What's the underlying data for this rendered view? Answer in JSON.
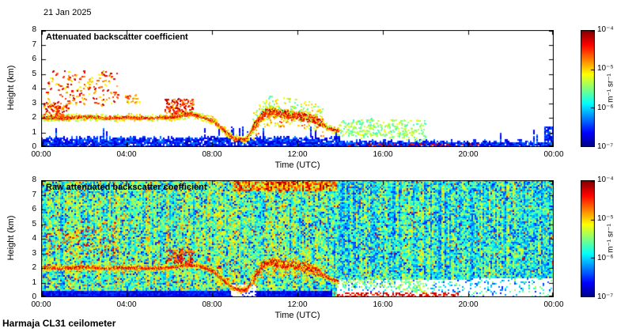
{
  "page": {
    "date_label": "21 Jan 2025",
    "footer": "Harmaja CL31 ceilometer",
    "background": "#ffffff"
  },
  "chart_data": [
    {
      "type": "heatmap",
      "style": "processed",
      "seed": 42,
      "title": "Attenuated backscatter coefficient",
      "xlabel": "Time (UTC)",
      "ylabel": "Height (km)",
      "x_ticks": [
        "00:00",
        "04:00",
        "08:00",
        "12:00",
        "16:00",
        "20:00",
        "00:00"
      ],
      "x_range_hours": [
        0,
        24
      ],
      "y_ticks": [
        0,
        1,
        2,
        3,
        4,
        5,
        6,
        7,
        8
      ],
      "ylim_km": [
        0,
        8
      ],
      "grid": false,
      "colorbar": {
        "ticks": [
          "10⁻⁴",
          "10⁻⁵",
          "10⁻⁶",
          "10⁻⁷"
        ],
        "unit": "m⁻¹ sr⁻¹",
        "scale": "log",
        "range": [
          "1e-7",
          "1e-4"
        ],
        "colormap": "jet",
        "position": "right"
      },
      "features": {
        "boundary_layer_top_km": 0.7,
        "boundary_layer_top_km_after_14utc": 0.45,
        "far_right_blue_block_top_km": 1.45,
        "ground_red_specks_t": [
          14.2,
          20.5
        ],
        "aerosol_track_t_h": [
          [
            0,
            2.05
          ],
          [
            1,
            2.0
          ],
          [
            2,
            2.1
          ],
          [
            3,
            2.0
          ],
          [
            4,
            2.05
          ],
          [
            5,
            2.0
          ],
          [
            6,
            2.05
          ],
          [
            7,
            2.25
          ],
          [
            7.5,
            2.1
          ],
          [
            8,
            1.85
          ],
          [
            8.5,
            1.25
          ],
          [
            9,
            0.6
          ],
          [
            9.6,
            0.5
          ],
          [
            10,
            1.5
          ],
          [
            10.4,
            2.3
          ],
          [
            10.8,
            2.45
          ],
          [
            11.2,
            2.3
          ],
          [
            11.8,
            2.2
          ],
          [
            12.4,
            2.1
          ],
          [
            13,
            1.75
          ],
          [
            13.5,
            1.3
          ],
          [
            14,
            1.05
          ],
          [
            15,
            0.95
          ],
          [
            16,
            1.1
          ],
          [
            17,
            0.85
          ],
          [
            18,
            0.6
          ]
        ],
        "cloud_speck_regions": [
          {
            "t": [
              0.2,
              3.6
            ],
            "h": [
              2.9,
              5.2
            ],
            "n": 150,
            "v": [
              0.6,
              0.95
            ]
          },
          {
            "t": [
              0.1,
              1.3
            ],
            "h": [
              2.1,
              3.0
            ],
            "n": 70,
            "v": [
              0.65,
              0.95
            ]
          },
          {
            "t": [
              5.8,
              7.1
            ],
            "h": [
              2.3,
              3.3
            ],
            "n": 110,
            "v": [
              0.7,
              0.97
            ]
          },
          {
            "t": [
              3.9,
              4.6
            ],
            "h": [
              3.0,
              3.6
            ],
            "n": 25,
            "v": [
              0.6,
              0.85
            ]
          },
          {
            "t": [
              14.0,
              18.0
            ],
            "h": [
              0.8,
              1.9
            ],
            "n": 150,
            "v": [
              0.42,
              0.62
            ]
          }
        ]
      }
    },
    {
      "type": "heatmap",
      "style": "raw",
      "seed": 7,
      "title": "Raw attenuated backscatter coefficient",
      "xlabel": "Time (UTC)",
      "ylabel": "Height (km)",
      "x_ticks": [
        "00:00",
        "04:00",
        "08:00",
        "12:00",
        "16:00",
        "20:00",
        "00:00"
      ],
      "x_range_hours": [
        0,
        24
      ],
      "y_ticks": [
        0,
        1,
        2,
        3,
        4,
        5,
        6,
        7,
        8
      ],
      "ylim_km": [
        0,
        8
      ],
      "grid": false,
      "colorbar": {
        "ticks": [
          "10⁻⁴",
          "10⁻⁵",
          "10⁻⁶",
          "10⁻⁷"
        ],
        "unit": "m⁻¹ sr⁻¹",
        "scale": "log",
        "range": [
          "1e-7",
          "1e-4"
        ],
        "colormap": "jet",
        "position": "right"
      },
      "features": {
        "noise": {
          "base": 0.42,
          "left_boost": 0.07,
          "left_until_t": 13.6,
          "speckle_blue_prob": 0.16,
          "hot_pixel_prob": 0.02
        },
        "top_orange_band": {
          "h_above": 7.2,
          "t": [
            9.0,
            13.8
          ]
        },
        "white_low_region": {
          "t_after": 13.8,
          "h_below": 1.15
        },
        "white_notch": {
          "t": [
            8.85,
            10.05
          ],
          "h_below": 0.85
        },
        "dark_blue_boundary": {
          "t_before": 13.6,
          "h_below": 0.4
        },
        "ground_red_band": {
          "t": [
            13.8,
            19.5
          ],
          "h_below": 0.28
        },
        "aerosol_track_t_h": [
          [
            0,
            2.05
          ],
          [
            1,
            2.0
          ],
          [
            2,
            2.1
          ],
          [
            3,
            2.0
          ],
          [
            4,
            2.05
          ],
          [
            5,
            2.0
          ],
          [
            6,
            2.05
          ],
          [
            7,
            2.25
          ],
          [
            7.5,
            2.1
          ],
          [
            8,
            1.85
          ],
          [
            8.5,
            1.25
          ],
          [
            9,
            0.6
          ],
          [
            9.6,
            0.5
          ],
          [
            10,
            1.5
          ],
          [
            10.4,
            2.3
          ],
          [
            10.8,
            2.45
          ],
          [
            11.2,
            2.3
          ],
          [
            11.8,
            2.2
          ],
          [
            12.4,
            2.1
          ],
          [
            13,
            1.75
          ],
          [
            13.5,
            1.3
          ],
          [
            14,
            1.05
          ],
          [
            15,
            0.95
          ],
          [
            16,
            1.1
          ],
          [
            17,
            0.85
          ],
          [
            18,
            0.6
          ]
        ],
        "cloud_speck_regions": [
          {
            "t": [
              0.2,
              3.6
            ],
            "h": [
              2.9,
              5.2
            ],
            "n": 120,
            "v": [
              0.6,
              0.95
            ]
          },
          {
            "t": [
              5.8,
              7.1
            ],
            "h": [
              2.3,
              3.3
            ],
            "n": 90,
            "v": [
              0.7,
              0.97
            ]
          }
        ]
      }
    }
  ]
}
